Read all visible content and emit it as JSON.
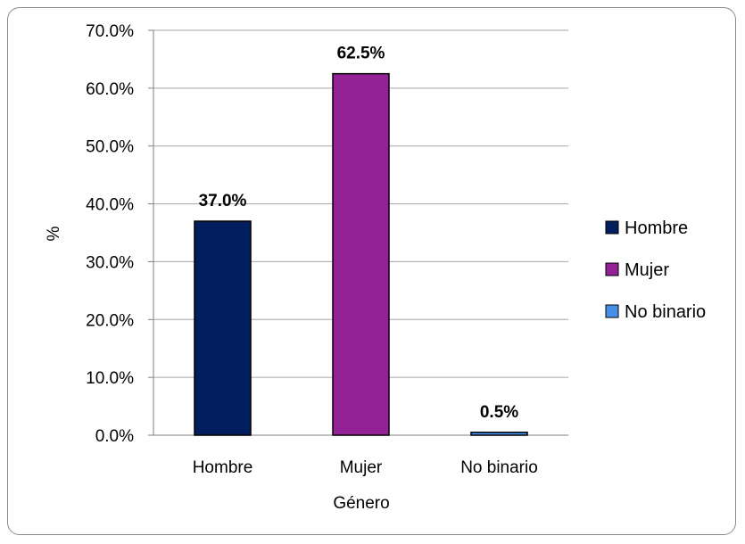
{
  "chart_data": {
    "type": "bar",
    "categories": [
      "Hombre",
      "Mujer",
      "No binario"
    ],
    "values": [
      37.0,
      62.5,
      0.5
    ],
    "data_labels": [
      "37.0%",
      "62.5%",
      "0.5%"
    ],
    "colors": [
      "#001f5c",
      "#952196",
      "#4a8fe7"
    ],
    "xlabel": "Género",
    "ylabel": "%",
    "ylim": [
      0,
      70
    ],
    "yticks": [
      0,
      10,
      20,
      30,
      40,
      50,
      60,
      70
    ],
    "ytick_labels": [
      "0.0%",
      "10.0%",
      "20.0%",
      "30.0%",
      "40.0%",
      "50.0%",
      "60.0%",
      "70.0%"
    ],
    "grid": true,
    "legend": {
      "placement": "right",
      "entries": [
        "Hombre",
        "Mujer",
        "No binario"
      ]
    }
  }
}
